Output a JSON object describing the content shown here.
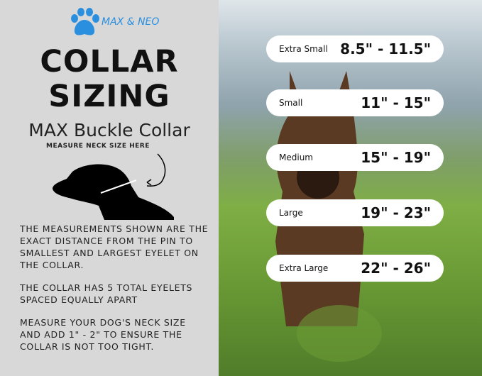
{
  "brand": "MAX & NEO",
  "title_line1": "COLLAR",
  "title_line2": "SIZING",
  "subtitle": "MAX Buckle Collar",
  "measure_label": "MEASURE NECK SIZE HERE",
  "paragraphs": [
    "THE MEASUREMENTS SHOWN ARE THE EXACT DISTANCE FROM THE PIN TO SMALLEST AND LARGEST EYELET ON THE COLLAR.",
    "THE COLLAR HAS 5 TOTAL EYELETS SPACED EQUALLY APART",
    "MEASURE YOUR DOG'S NECK SIZE AND ADD 1\" - 2\" TO ENSURE THE COLLAR IS NOT TOO TIGHT."
  ],
  "sizes": [
    {
      "name": "Extra Small",
      "range": "8.5\" - 11.5\""
    },
    {
      "name": "Small",
      "range": "11\" - 15\""
    },
    {
      "name": "Medium",
      "range": "15\" - 19\""
    },
    {
      "name": "Large",
      "range": "19\" - 23\""
    },
    {
      "name": "Extra Large",
      "range": "22\" - 26\""
    }
  ],
  "colors": {
    "brand": "#2b8fe0",
    "panel": "#d8d8d8"
  }
}
